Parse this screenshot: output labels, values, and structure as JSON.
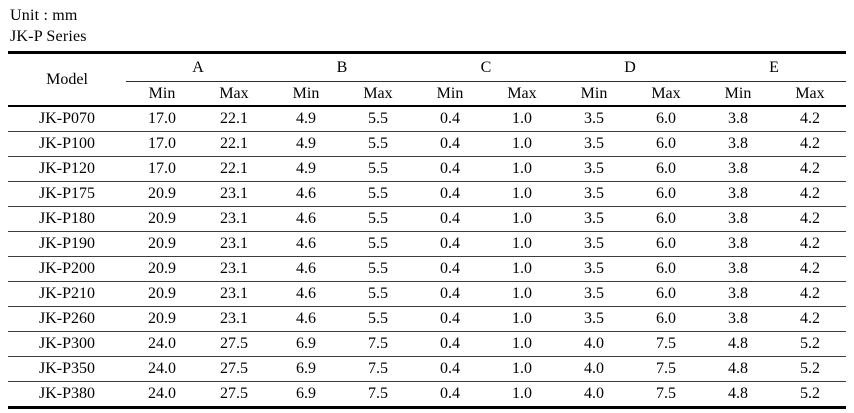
{
  "page": {
    "unit_label": "Unit : mm",
    "series_label": "JK-P Series"
  },
  "table": {
    "model_header": "Model",
    "groups": [
      "A",
      "B",
      "C",
      "D",
      "E"
    ],
    "sub_headers": [
      "Min",
      "Max"
    ],
    "rows": [
      {
        "model": "JK-P070",
        "values": [
          "17.0",
          "22.1",
          "4.9",
          "5.5",
          "0.4",
          "1.0",
          "3.5",
          "6.0",
          "3.8",
          "4.2"
        ]
      },
      {
        "model": "JK-P100",
        "values": [
          "17.0",
          "22.1",
          "4.9",
          "5.5",
          "0.4",
          "1.0",
          "3.5",
          "6.0",
          "3.8",
          "4.2"
        ]
      },
      {
        "model": "JK-P120",
        "values": [
          "17.0",
          "22.1",
          "4.9",
          "5.5",
          "0.4",
          "1.0",
          "3.5",
          "6.0",
          "3.8",
          "4.2"
        ]
      },
      {
        "model": "JK-P175",
        "values": [
          "20.9",
          "23.1",
          "4.6",
          "5.5",
          "0.4",
          "1.0",
          "3.5",
          "6.0",
          "3.8",
          "4.2"
        ]
      },
      {
        "model": "JK-P180",
        "values": [
          "20.9",
          "23.1",
          "4.6",
          "5.5",
          "0.4",
          "1.0",
          "3.5",
          "6.0",
          "3.8",
          "4.2"
        ]
      },
      {
        "model": "JK-P190",
        "values": [
          "20.9",
          "23.1",
          "4.6",
          "5.5",
          "0.4",
          "1.0",
          "3.5",
          "6.0",
          "3.8",
          "4.2"
        ]
      },
      {
        "model": "JK-P200",
        "values": [
          "20.9",
          "23.1",
          "4.6",
          "5.5",
          "0.4",
          "1.0",
          "3.5",
          "6.0",
          "3.8",
          "4.2"
        ]
      },
      {
        "model": "JK-P210",
        "values": [
          "20.9",
          "23.1",
          "4.6",
          "5.5",
          "0.4",
          "1.0",
          "3.5",
          "6.0",
          "3.8",
          "4.2"
        ]
      },
      {
        "model": "JK-P260",
        "values": [
          "20.9",
          "23.1",
          "4.6",
          "5.5",
          "0.4",
          "1.0",
          "3.5",
          "6.0",
          "3.8",
          "4.2"
        ]
      },
      {
        "model": "JK-P300",
        "values": [
          "24.0",
          "27.5",
          "6.9",
          "7.5",
          "0.4",
          "1.0",
          "4.0",
          "7.5",
          "4.8",
          "5.2"
        ]
      },
      {
        "model": "JK-P350",
        "values": [
          "24.0",
          "27.5",
          "6.9",
          "7.5",
          "0.4",
          "1.0",
          "4.0",
          "7.5",
          "4.8",
          "5.2"
        ]
      },
      {
        "model": "JK-P380",
        "values": [
          "24.0",
          "27.5",
          "6.9",
          "7.5",
          "0.4",
          "1.0",
          "4.0",
          "7.5",
          "4.8",
          "5.2"
        ]
      }
    ]
  }
}
